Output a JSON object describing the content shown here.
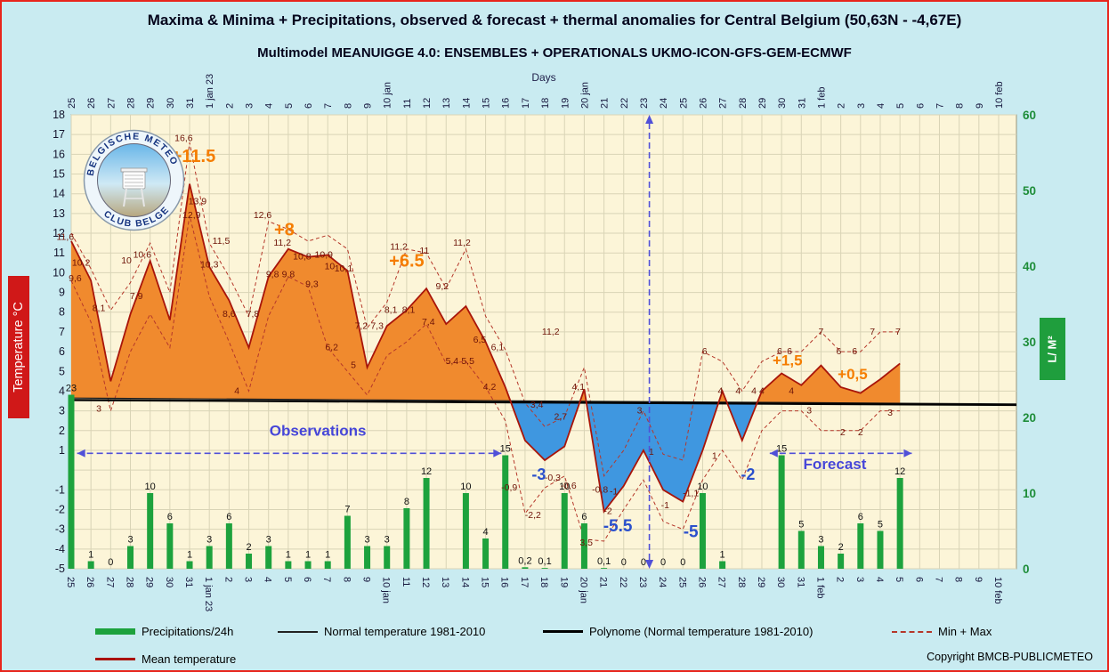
{
  "header": {
    "title": "Maxima & Minima + Precipitations, observed & forecast + thermal anomalies for Central Belgium (50,63N - -4,67E)",
    "subtitle": "Multimodel MEANUIGGE 4.0: ENSEMBLES + OPERATIONALS  UKMO-ICON-GFS-GEM-ECMWF",
    "days_axis_label": "Days"
  },
  "axes": {
    "left_label": "Temperature °C",
    "right_label": "L/ M²"
  },
  "logo": {
    "text_top": "BELGISCHE METEO",
    "text_bottom": "CLUB BELGE"
  },
  "legend": {
    "items": [
      {
        "label": "Precipitations/24h"
      },
      {
        "label": "Normal temperature 1981-2010"
      },
      {
        "label": "Polynome (Normal temperature 1981-2010)"
      },
      {
        "label": "Min + Max"
      },
      {
        "label": "Mean temperature"
      }
    ]
  },
  "copyright": "Copyright BMCB-PUBLICMETEO",
  "colors": {
    "page_bg": "#c9ebf1",
    "page_border": "#e8251c",
    "plot_bg": "#fcf5d8",
    "grid": "#d9d4b6",
    "warm_fill": "#f08a2e",
    "cold_fill": "#3f97e0",
    "mean_line": "#a8150a",
    "minmax_line": "#b5372a",
    "bar": "#1da23d",
    "normal_line": "#1a1a1a",
    "polynome_line": "#000000",
    "right_axis": "#1e8d39",
    "span_arrow": "#5050d8",
    "span_text": "#4646d8",
    "value_label": "#6e1408"
  },
  "chart_data": {
    "type": "combo",
    "title": "Maxima & Minima + Precipitations, observed & forecast + thermal anomalies for Central Belgium (50,63N - -4,67E)",
    "xlabel": "Days",
    "ylabel_left": "Temperature °C",
    "ylabel_right": "L/ M²",
    "x_labels": [
      "25",
      "26",
      "27",
      "28",
      "29",
      "30",
      "31",
      "1 jan 23",
      "2",
      "3",
      "4",
      "5",
      "6",
      "7",
      "8",
      "9",
      "10 jan",
      "11",
      "12",
      "13",
      "14",
      "15",
      "16",
      "17",
      "18",
      "19",
      "20 jan",
      "21",
      "22",
      "23",
      "24",
      "25",
      "26",
      "27",
      "28",
      "29",
      "30",
      "31",
      "1 feb",
      "2",
      "3",
      "4",
      "5",
      "6",
      "7",
      "8",
      "9",
      "10 feb"
    ],
    "temp_axis": {
      "min": -5,
      "max": 18,
      "ticks": [
        18,
        17,
        16,
        15,
        14,
        13,
        12,
        11,
        10,
        9,
        8,
        7,
        6,
        5,
        4,
        3,
        2,
        1,
        -1,
        -2,
        -3,
        -4,
        -5
      ]
    },
    "precip_axis": {
      "min": 0,
      "max": 60,
      "ticks": [
        60,
        50,
        40,
        30,
        20,
        10,
        0
      ]
    },
    "normal_temp_endpoints": [
      3.65,
      3.35
    ],
    "polynome_endpoints": [
      3.55,
      3.3
    ],
    "series": {
      "mean_temp": [
        11.6,
        9.6,
        4.5,
        7.9,
        10.6,
        7.6,
        14.5,
        10.3,
        8.6,
        6.2,
        9.8,
        11.2,
        10.8,
        10.9,
        10.1,
        5.2,
        7.3,
        8.1,
        9.2,
        7.4,
        8.3,
        6.5,
        4.2,
        1.5,
        0.5,
        1.2,
        4.1,
        -2.1,
        -0.8,
        1.0,
        -1.0,
        -1.6,
        1.0,
        4.0,
        1.5,
        4.0,
        4.9,
        4.3,
        5.3,
        4.2,
        3.9,
        4.6,
        5.4,
        null,
        null,
        null,
        null,
        null
      ],
      "max_temp": [
        12.0,
        10.2,
        8.1,
        9.5,
        11.5,
        9.0,
        16.6,
        11.5,
        9.8,
        7.8,
        12.6,
        12.2,
        11.6,
        11.9,
        11.2,
        7.2,
        8.5,
        11.2,
        11.0,
        9.2,
        11.2,
        7.8,
        6.1,
        3.4,
        2.2,
        2.7,
        5.2,
        -0.3,
        1.0,
        3.0,
        0.8,
        0.5,
        6.0,
        5.5,
        4.0,
        5.5,
        6.0,
        6.0,
        7.0,
        6.0,
        6.0,
        7.0,
        7.0,
        null,
        null,
        null,
        null,
        null
      ],
      "min_temp": [
        9.6,
        7.5,
        3.0,
        6.0,
        7.9,
        6.2,
        12.9,
        8.8,
        6.5,
        4.0,
        7.8,
        9.8,
        9.3,
        6.2,
        5.0,
        3.8,
        5.8,
        6.5,
        7.4,
        5.4,
        5.5,
        4.2,
        2.5,
        -2.2,
        -0.9,
        -0.3,
        -3.5,
        -3.6,
        -2.0,
        -0.5,
        -2.6,
        -3.0,
        -0.5,
        1.0,
        -0.5,
        2.0,
        3.0,
        3.0,
        2.0,
        2.0,
        2.0,
        3.0,
        3.0,
        null,
        null,
        null,
        null,
        null
      ],
      "precipitation": [
        23,
        1,
        0,
        3,
        10,
        6,
        1,
        3,
        6,
        2,
        3,
        1,
        1,
        1,
        7,
        3,
        3,
        8,
        12,
        null,
        10,
        4,
        15,
        0.2,
        0.1,
        10,
        6,
        0.1,
        0,
        0,
        0,
        0,
        10,
        1,
        null,
        null,
        15,
        5,
        3,
        2,
        6,
        5,
        12,
        null,
        null,
        null,
        null,
        null
      ]
    },
    "point_labels": [
      [
        -0.3,
        11.8,
        "11,6"
      ],
      [
        0.5,
        10.5,
        "10,2"
      ],
      [
        0.2,
        9.7,
        "9,6"
      ],
      [
        1.4,
        8.2,
        "8,1"
      ],
      [
        1.4,
        3.1,
        "3"
      ],
      [
        2.8,
        10.6,
        "10"
      ],
      [
        3.3,
        8.8,
        "7,9"
      ],
      [
        3.6,
        10.9,
        "10,6"
      ],
      [
        5.7,
        16.8,
        "16,6"
      ],
      [
        6.4,
        13.6,
        "13,9"
      ],
      [
        6.1,
        12.9,
        "12,9"
      ],
      [
        7.6,
        11.6,
        "11,5"
      ],
      [
        7.0,
        10.4,
        "10,3"
      ],
      [
        8.0,
        7.9,
        "8,6"
      ],
      [
        8.4,
        4.0,
        "4"
      ],
      [
        9.2,
        7.9,
        "7,8"
      ],
      [
        9.7,
        12.9,
        "12,6"
      ],
      [
        10.2,
        9.9,
        "9,8"
      ],
      [
        10.7,
        11.5,
        "11,2"
      ],
      [
        11.0,
        9.9,
        "9,8"
      ],
      [
        11.7,
        10.8,
        "10,8"
      ],
      [
        12.2,
        9.4,
        "9,3"
      ],
      [
        12.8,
        10.9,
        "10,9"
      ],
      [
        13.1,
        10.3,
        "10"
      ],
      [
        13.2,
        6.2,
        "6,2"
      ],
      [
        13.8,
        10.2,
        "10,1"
      ],
      [
        14.3,
        5.3,
        "5"
      ],
      [
        14.7,
        7.3,
        "7,2"
      ],
      [
        15.5,
        7.3,
        "7,3"
      ],
      [
        16.2,
        8.1,
        "8,1"
      ],
      [
        16.6,
        11.3,
        "11,2"
      ],
      [
        17.1,
        8.1,
        "8,1"
      ],
      [
        17.9,
        11.1,
        "11"
      ],
      [
        18.1,
        7.5,
        "7,4"
      ],
      [
        18.8,
        9.3,
        "9,2"
      ],
      [
        19.3,
        5.5,
        "5,4"
      ],
      [
        19.8,
        11.5,
        "11,2"
      ],
      [
        20.1,
        5.5,
        "5,5"
      ],
      [
        20.7,
        6.6,
        "6,5"
      ],
      [
        21.2,
        4.2,
        "4,2"
      ],
      [
        21.6,
        6.2,
        "6,1"
      ],
      [
        22.2,
        -0.9,
        "-0,9"
      ],
      [
        23.6,
        3.3,
        "3,4"
      ],
      [
        23.4,
        -2.3,
        "-2,2"
      ],
      [
        24.3,
        7.0,
        "11,2"
      ],
      [
        24.8,
        2.7,
        "2,7"
      ],
      [
        24.4,
        -0.4,
        "-0,3"
      ],
      [
        25.2,
        -0.8,
        "-0,6"
      ],
      [
        25.7,
        4.2,
        "4,1"
      ],
      [
        26.1,
        -3.7,
        "3,5"
      ],
      [
        26.8,
        -1.0,
        "-0,8"
      ],
      [
        27.2,
        -2.1,
        "-2"
      ],
      [
        27.5,
        -1.1,
        "-1"
      ],
      [
        28.8,
        3.0,
        "3"
      ],
      [
        29.4,
        0.9,
        "1"
      ],
      [
        30.1,
        -1.8,
        "-1"
      ],
      [
        31.4,
        -1.2,
        "-1,1"
      ],
      [
        32.1,
        6.0,
        "6"
      ],
      [
        32.6,
        0.7,
        "1"
      ],
      [
        32.9,
        4.0,
        "4"
      ],
      [
        33.8,
        4.0,
        "4"
      ],
      [
        34.6,
        4.0,
        "4"
      ],
      [
        35.0,
        4.0,
        "4"
      ],
      [
        35.9,
        6.0,
        "6"
      ],
      [
        36.4,
        6.0,
        "6"
      ],
      [
        36.5,
        4.0,
        "4"
      ],
      [
        37.4,
        3.0,
        "3"
      ],
      [
        38.0,
        7.0,
        "7"
      ],
      [
        38.9,
        6.0,
        "6"
      ],
      [
        39.1,
        1.9,
        "2"
      ],
      [
        39.7,
        6.0,
        "6"
      ],
      [
        40.0,
        1.9,
        "2"
      ],
      [
        40.6,
        7.0,
        "7"
      ],
      [
        41.5,
        2.9,
        "3"
      ],
      [
        41.9,
        7.0,
        "7"
      ]
    ],
    "annotations": [
      {
        "day": 6.2,
        "temp": 15.6,
        "text": "+11.5",
        "color": "#f57d00",
        "size": 20
      },
      {
        "day": 10.8,
        "temp": 11.9,
        "text": "+8",
        "color": "#f57d00",
        "size": 20
      },
      {
        "day": 17.0,
        "temp": 10.3,
        "text": "+6.5",
        "color": "#f57d00",
        "size": 20
      },
      {
        "day": 36.3,
        "temp": 5.3,
        "text": "+1,5",
        "color": "#f57d00",
        "size": 17
      },
      {
        "day": 39.6,
        "temp": 4.6,
        "text": "+0,5",
        "color": "#f57d00",
        "size": 17
      },
      {
        "day": 23.7,
        "temp": -0.5,
        "text": "-3",
        "color": "#2b50cc",
        "size": 18
      },
      {
        "day": 27.7,
        "temp": -3.1,
        "text": "-5.5",
        "color": "#2b50cc",
        "size": 19
      },
      {
        "day": 31.4,
        "temp": -3.4,
        "text": "-5",
        "color": "#2b50cc",
        "size": 19
      },
      {
        "day": 34.3,
        "temp": -0.5,
        "text": "-2",
        "color": "#2b50cc",
        "size": 18
      }
    ],
    "observations": {
      "label": "Observations",
      "from_day": 0.3,
      "to_day": 21.8,
      "temp_y": 0.85,
      "label_day": 12.5,
      "label_temp": 1.75
    },
    "forecast": {
      "label": "Forecast",
      "from_day": 35.4,
      "to_day": 42.6,
      "temp_y": 0.85,
      "label_day": 38.7,
      "label_temp": 0.05
    },
    "divider_day": 29.3
  }
}
